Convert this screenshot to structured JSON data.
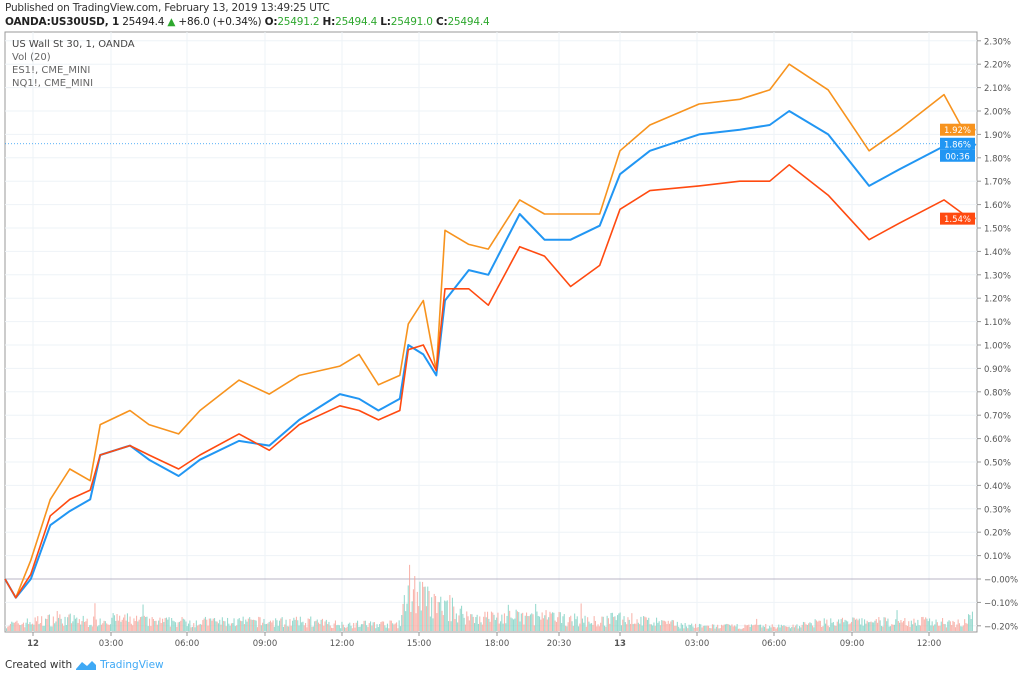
{
  "header": {
    "published": "Published on TradingView.com, February 13, 2019 13:49:25 UTC",
    "symbol": "OANDA:US30USD, 1",
    "last": "25494.4",
    "change": "+86.0 (+0.34%)",
    "o_label": "O:",
    "o": "25491.2",
    "h_label": "H:",
    "h": "25494.4",
    "l_label": "L:",
    "l": "25491.0",
    "c_label": "C:",
    "c": "25494.4",
    "up_color": "#2ea82e"
  },
  "legend": [
    "US Wall St 30, 1, OANDA",
    "Vol (20)",
    "ES1!, CME_MINI",
    "NQ1!, CME_MINI"
  ],
  "footer": {
    "created_with": "Created with",
    "brand": "TradingView"
  },
  "chart_data": {
    "type": "line",
    "ylim": [
      -0.2,
      2.3
    ],
    "y_unit": "%",
    "y_ticks": [
      "2.30%",
      "2.20%",
      "2.10%",
      "2.00%",
      "1.90%",
      "1.80%",
      "1.70%",
      "1.60%",
      "1.50%",
      "1.40%",
      "1.30%",
      "1.20%",
      "1.10%",
      "1.00%",
      "0.90%",
      "0.80%",
      "0.70%",
      "0.60%",
      "0.50%",
      "0.40%",
      "0.30%",
      "0.20%",
      "0.10%",
      "−0.00%",
      "−0.10%",
      "−0.20%"
    ],
    "x_ticks": [
      {
        "label": "12",
        "time": "02-12 00:00",
        "bold": true
      },
      {
        "label": "03:00",
        "time": "02-12 03:00"
      },
      {
        "label": "06:00",
        "time": "02-12 06:00"
      },
      {
        "label": "09:00",
        "time": "02-12 09:00"
      },
      {
        "label": "12:00",
        "time": "02-12 12:00"
      },
      {
        "label": "15:00",
        "time": "02-12 15:00"
      },
      {
        "label": "18:00",
        "time": "02-12 18:00"
      },
      {
        "label": "20:30",
        "time": "02-12 20:30"
      },
      {
        "label": "13",
        "time": "02-13 00:00",
        "bold": true
      },
      {
        "label": "03:00",
        "time": "02-13 03:00"
      },
      {
        "label": "06:00",
        "time": "02-13 06:00"
      },
      {
        "label": "09:00",
        "time": "02-13 09:00"
      },
      {
        "label": "12:00",
        "time": "02-13 12:00"
      }
    ],
    "grid": true,
    "x": [
      "02-11 22:55",
      "02-11 23:20",
      "02-11 23:55",
      "02-12 00:40",
      "02-12 01:25",
      "02-12 02:12",
      "02-12 02:35",
      "02-12 03:45",
      "02-12 04:30",
      "02-12 05:40",
      "02-12 06:30",
      "02-12 08:00",
      "02-12 09:10",
      "02-12 10:20",
      "02-12 11:55",
      "02-12 12:40",
      "02-12 13:25",
      "02-12 14:15",
      "02-12 14:35",
      "02-12 15:10",
      "02-12 15:40",
      "02-12 16:00",
      "02-12 16:55",
      "02-12 17:40",
      "02-12 18:55",
      "02-12 19:55",
      "02-12 21:10",
      "02-12 22:50",
      "02-13 00:00",
      "02-13 01:10",
      "02-13 03:05",
      "02-13 04:40",
      "02-13 05:50",
      "02-13 06:35",
      "02-13 08:05",
      "02-13 09:40",
      "02-13 10:50",
      "02-13 12:35",
      "02-13 13:20",
      "02-13 13:49"
    ],
    "series": [
      {
        "color": "#f7931e",
        "last_label": "1.92%",
        "values": [
          0,
          -0.08,
          0.08,
          0.34,
          0.47,
          0.42,
          0.66,
          0.72,
          0.66,
          0.62,
          0.72,
          0.85,
          0.79,
          0.87,
          0.91,
          0.96,
          0.83,
          0.87,
          1.09,
          1.19,
          0.89,
          1.49,
          1.43,
          1.41,
          1.62,
          1.56,
          1.56,
          1.56,
          1.83,
          1.94,
          2.03,
          2.05,
          2.09,
          2.2,
          2.09,
          1.83,
          1.92,
          2.07,
          1.92,
          1.92
        ]
      },
      {
        "color": "#2196f3",
        "last_label": "1.86%",
        "countdown": "00:36",
        "values": [
          0,
          -0.08,
          0,
          0.23,
          0.29,
          0.34,
          0.53,
          0.57,
          0.51,
          0.44,
          0.51,
          0.59,
          0.57,
          0.68,
          0.79,
          0.77,
          0.72,
          0.77,
          1.0,
          0.96,
          0.87,
          1.19,
          1.32,
          1.3,
          1.56,
          1.45,
          1.45,
          1.51,
          1.73,
          1.83,
          1.9,
          1.92,
          1.94,
          2.0,
          1.9,
          1.68,
          1.75,
          1.85,
          1.79,
          1.86
        ]
      },
      {
        "color": "#ff4a10",
        "last_label": "1.54%",
        "values": [
          0,
          -0.08,
          0.02,
          0.27,
          0.34,
          0.38,
          0.53,
          0.57,
          0.53,
          0.47,
          0.53,
          0.62,
          0.55,
          0.66,
          0.74,
          0.72,
          0.68,
          0.72,
          0.98,
          1.0,
          0.89,
          1.24,
          1.24,
          1.17,
          1.42,
          1.38,
          1.25,
          1.34,
          1.58,
          1.66,
          1.68,
          1.7,
          1.7,
          1.77,
          1.64,
          1.45,
          1.52,
          1.62,
          1.56,
          1.54
        ]
      }
    ],
    "volume": {
      "up_color": "#7fd1c3",
      "down_color": "#f7a49a",
      "relative_level": [
        0.15,
        0.15,
        0.2,
        0.25,
        0.25,
        0.2,
        0.25,
        0.25,
        0.2,
        0.2,
        0.2,
        0.2,
        0.2,
        0.2,
        0.15,
        0.15,
        0.15,
        0.15,
        1.0,
        0.7,
        0.5,
        0.55,
        0.3,
        0.3,
        0.3,
        0.3,
        0.25,
        0.2,
        0.3,
        0.2,
        0.1,
        0.1,
        0.1,
        0.1,
        0.2,
        0.2,
        0.2,
        0.2,
        0.2,
        0.3
      ]
    }
  }
}
